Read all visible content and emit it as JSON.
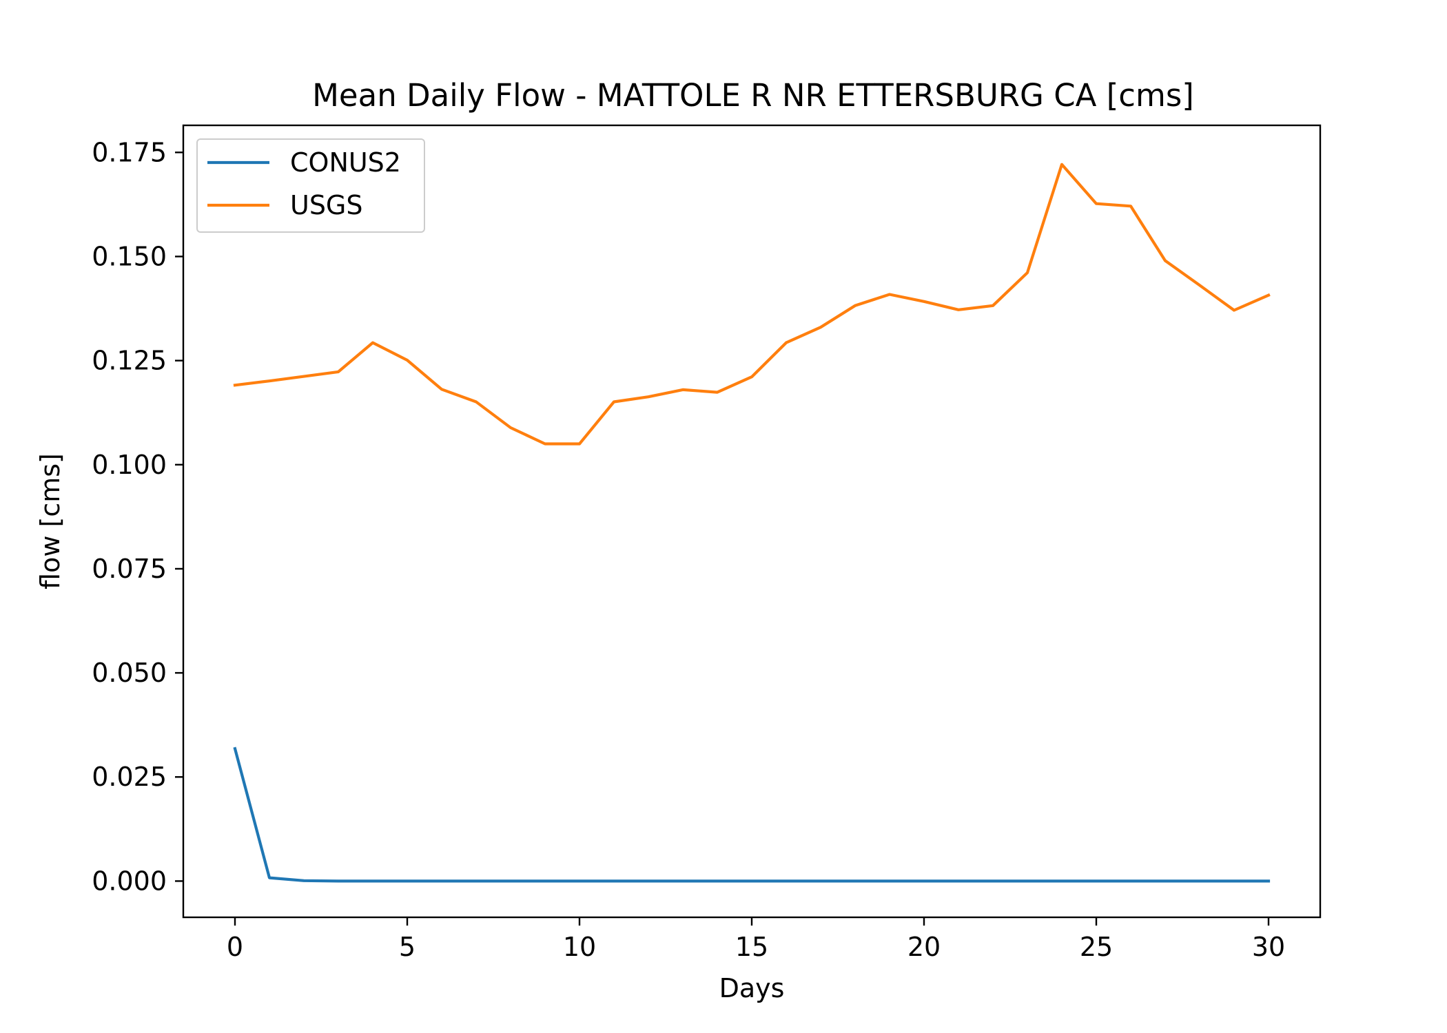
{
  "chart_data": {
    "type": "line",
    "title": "Mean Daily Flow - MATTOLE R NR ETTERSBURG CA [cms]",
    "xlabel": "Days",
    "ylabel": "flow [cms]",
    "xlim": [
      -1.5,
      31.5
    ],
    "ylim": [
      -0.0087,
      0.1815
    ],
    "xticks": [
      0,
      5,
      10,
      15,
      20,
      25,
      30
    ],
    "xtick_labels": [
      "0",
      "5",
      "10",
      "15",
      "20",
      "25",
      "30"
    ],
    "yticks": [
      0,
      0.025,
      0.05,
      0.075,
      0.1,
      0.125,
      0.15,
      0.175
    ],
    "ytick_labels": [
      "0.000",
      "0.025",
      "0.050",
      "0.075",
      "0.100",
      "0.125",
      "0.150",
      "0.175"
    ],
    "grid": false,
    "legend_position": "top-left",
    "x": [
      0,
      1,
      2,
      3,
      4,
      5,
      6,
      7,
      8,
      9,
      10,
      11,
      12,
      13,
      14,
      15,
      16,
      17,
      18,
      19,
      20,
      21,
      22,
      23,
      24,
      25,
      26,
      27,
      28,
      29,
      30
    ],
    "series": [
      {
        "name": "CONUS2",
        "color": "#1f77b4",
        "values": [
          0.0318,
          0.0008,
          0.0001,
          0,
          0,
          0,
          0,
          0,
          0,
          0,
          0,
          0,
          0,
          0,
          0,
          0,
          0,
          0,
          0,
          0,
          0,
          0,
          0,
          0,
          0,
          0,
          0,
          0,
          0,
          0,
          0
        ]
      },
      {
        "name": "USGS",
        "color": "#ff7f0e",
        "values": [
          0.1191,
          0.1201,
          0.1212,
          0.1223,
          0.1293,
          0.1251,
          0.1181,
          0.1151,
          0.1089,
          0.105,
          0.105,
          0.1151,
          0.1163,
          0.118,
          0.1174,
          0.1211,
          0.1293,
          0.133,
          0.1382,
          0.1409,
          0.1392,
          0.1372,
          0.1382,
          0.1461,
          0.1721,
          0.1627,
          0.1621,
          0.149,
          0.1431,
          0.1371,
          0.1407
        ]
      }
    ]
  }
}
